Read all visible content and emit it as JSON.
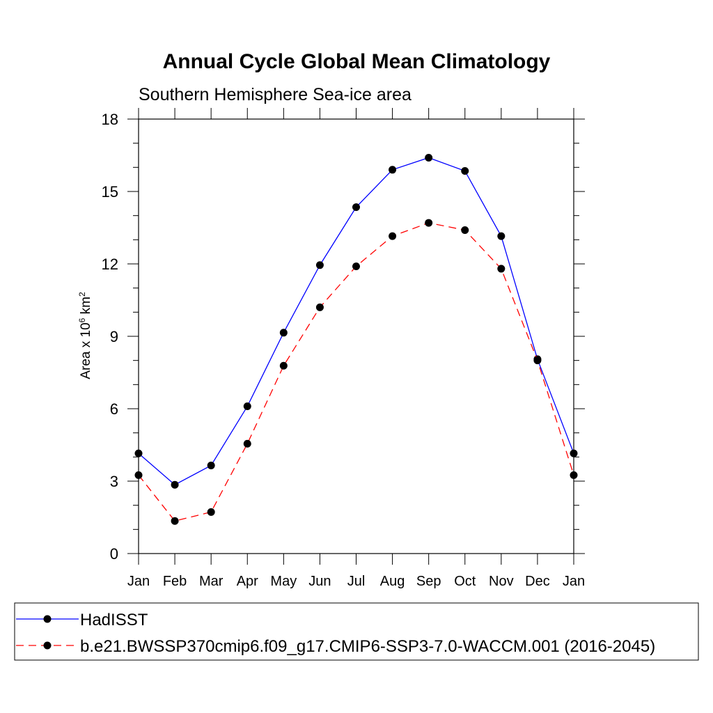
{
  "chart_data": {
    "type": "line",
    "title": "Annual Cycle Global Mean Climatology",
    "subtitle": "Southern Hemisphere Sea-ice area",
    "ylabel_main": "Area x 10",
    "ylabel_exp1": "6",
    "ylabel_unit": " km",
    "ylabel_exp2": "2",
    "categories": [
      "Jan",
      "Feb",
      "Mar",
      "Apr",
      "May",
      "Jun",
      "Jul",
      "Aug",
      "Sep",
      "Oct",
      "Nov",
      "Dec",
      "Jan"
    ],
    "yticks": [
      0,
      3,
      6,
      9,
      12,
      15,
      18
    ],
    "ylim": [
      0,
      18
    ],
    "series": [
      {
        "name": "HadISST",
        "color": "#0000ff",
        "dash": "solid",
        "values": [
          4.15,
          2.85,
          3.65,
          6.1,
          9.15,
          11.95,
          14.35,
          15.9,
          16.4,
          15.85,
          13.15,
          8.05,
          4.15
        ]
      },
      {
        "name": "b.e21.BWSSP370cmip6.f09_g17.CMIP6-SSP3-7.0-WACCM.001 (2016-2045)",
        "color": "#ff0000",
        "dash": "dashed",
        "values": [
          3.25,
          1.35,
          1.72,
          4.55,
          7.78,
          10.2,
          11.9,
          13.15,
          13.7,
          13.4,
          11.8,
          8.0,
          3.25
        ]
      }
    ]
  }
}
